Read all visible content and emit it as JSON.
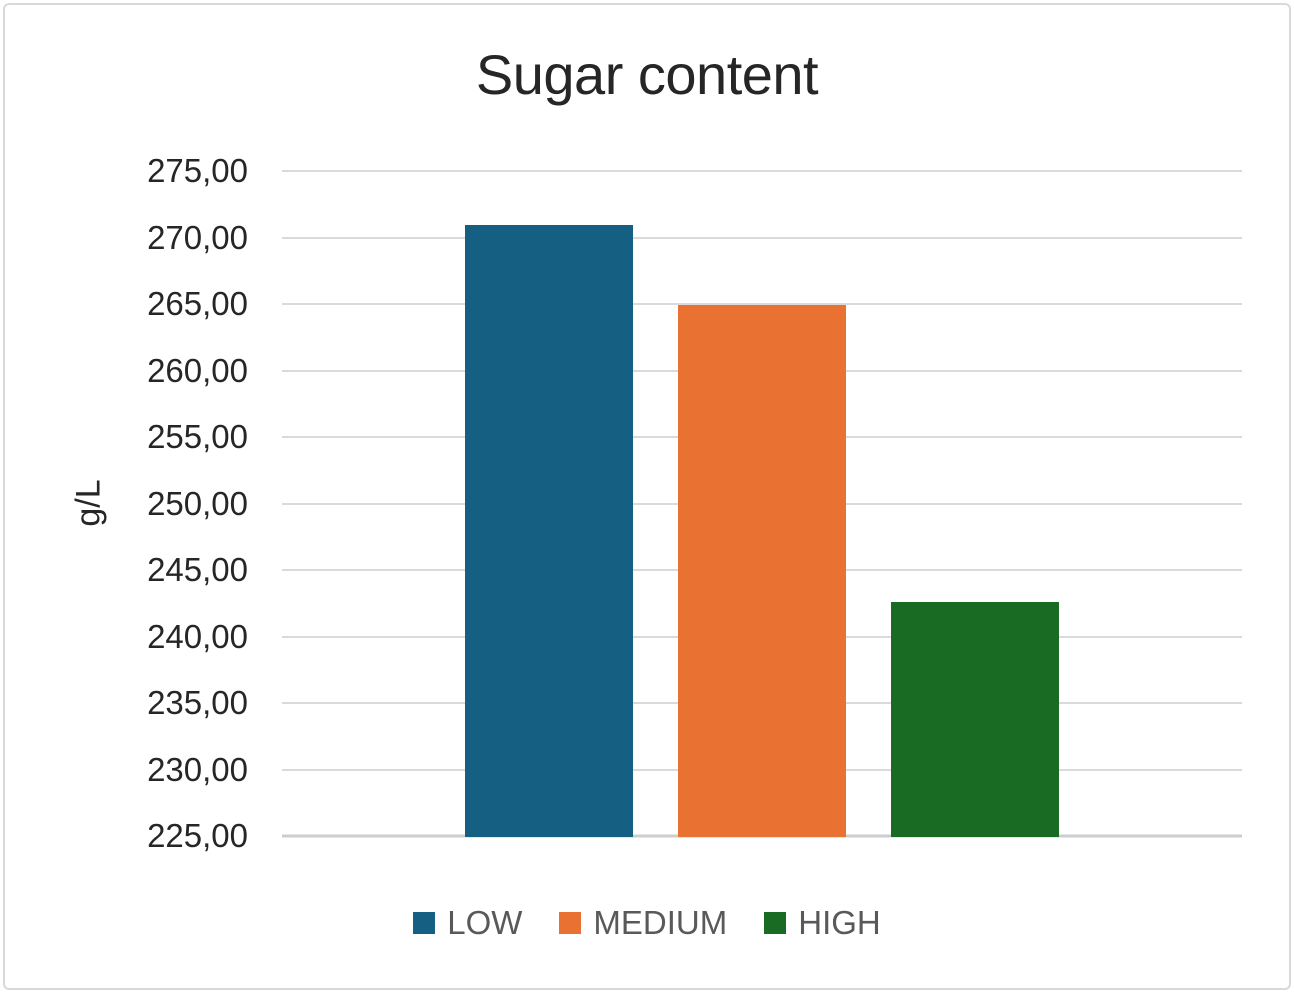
{
  "window": {
    "background": "#ffffff",
    "border_color": "#d9d9d9"
  },
  "chart_data": {
    "type": "bar",
    "title": "Sugar content",
    "categories": [
      "LOW",
      "MEDIUM",
      "HIGH"
    ],
    "values": [
      271.0,
      265.0,
      242.7
    ],
    "bar_colors": [
      "#156082",
      "#E97132",
      "#196B24"
    ],
    "xlabel": "",
    "ylabel": "g/L",
    "ylim": [
      225,
      275
    ],
    "ytick_step": 5,
    "ytick_labels": [
      "275,00",
      "270,00",
      "265,00",
      "260,00",
      "255,00",
      "250,00",
      "245,00",
      "240,00",
      "235,00",
      "230,00",
      "225,00"
    ],
    "decimal_separator": ",",
    "grid": true,
    "legend": {
      "position": "bottom",
      "entries": [
        "LOW",
        "MEDIUM",
        "HIGH"
      ]
    }
  },
  "colors": {
    "title_text": "#262626",
    "tick_text": "#262626",
    "legend_text": "#595959",
    "gridline": "#dadada",
    "axis_line": "#cdcdcd"
  }
}
